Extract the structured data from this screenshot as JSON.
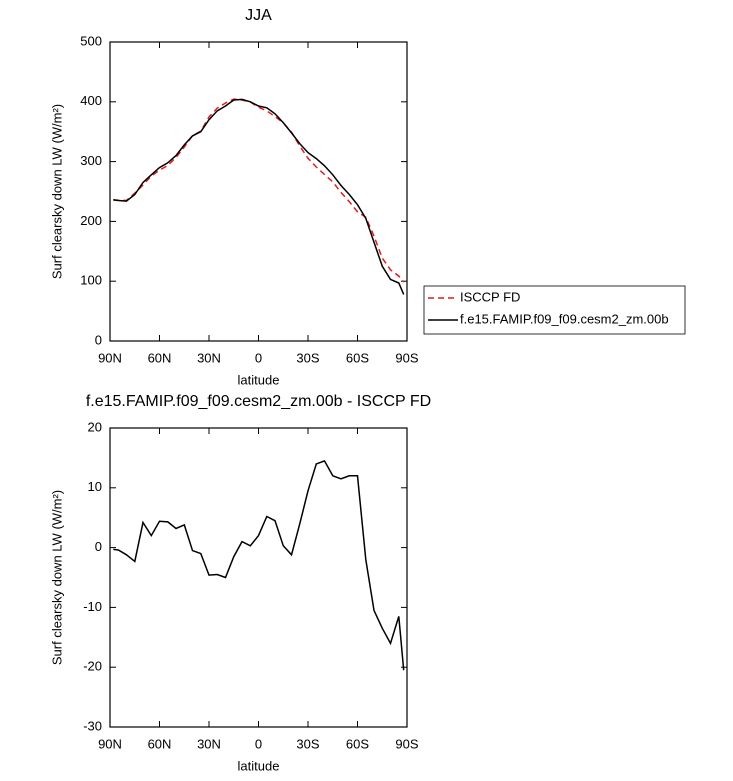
{
  "chart_data": [
    {
      "type": "line",
      "title": "JJA",
      "xlabel": "latitude",
      "ylabel": "Surf clearsky down LW (W/m²)",
      "x": [
        88,
        85,
        80,
        75,
        70,
        65,
        60,
        55,
        50,
        45,
        40,
        35,
        30,
        25,
        20,
        15,
        10,
        5,
        0,
        -5,
        -10,
        -15,
        -20,
        -25,
        -30,
        -35,
        -40,
        -45,
        -50,
        -55,
        -60,
        -65,
        -70,
        -75,
        -80,
        -85,
        -88
      ],
      "series": [
        {
          "name": "ISCCP FD",
          "color": "#e41a1c",
          "dash": "dashed",
          "values": [
            236.3,
            235.4,
            235.2,
            247.3,
            260.8,
            276,
            285.6,
            293.7,
            306.8,
            324.2,
            343.5,
            351,
            374.6,
            389.5,
            398,
            404.5,
            403,
            399.7,
            391,
            384.8,
            375.5,
            364.7,
            349.2,
            326,
            305.5,
            291,
            278.5,
            266,
            248.5,
            233,
            216,
            207,
            175.5,
            138.5,
            119,
            108.5,
            98.5
          ]
        },
        {
          "name": "f.e15.FAMIP.f09_f09.cesm2_zm.00b",
          "color": "#000000",
          "dash": "solid",
          "values": [
            236,
            235,
            234,
            245,
            265,
            278,
            290,
            298,
            310,
            328,
            343,
            350,
            370,
            385,
            393,
            403,
            404,
            400,
            393,
            390,
            380,
            365,
            348,
            330,
            315,
            305,
            293,
            278,
            260,
            245,
            228,
            205,
            165,
            125,
            103,
            97,
            78
          ]
        }
      ],
      "xlim": [
        90,
        -90
      ],
      "xticks": [
        {
          "value": 90,
          "label": "90N"
        },
        {
          "value": 60,
          "label": "60N"
        },
        {
          "value": 30,
          "label": "30N"
        },
        0,
        {
          "value": -30,
          "label": "30S"
        },
        {
          "value": -60,
          "label": "60S"
        },
        {
          "value": -90,
          "label": "90S"
        }
      ],
      "ylim": [
        0,
        500
      ],
      "yticks": [
        0,
        100,
        200,
        300,
        400,
        500
      ],
      "legend": "outside-right"
    },
    {
      "type": "line",
      "title": "f.e15.FAMIP.f09_f09.cesm2_zm.00b - ISCCP FD",
      "xlabel": "latitude",
      "ylabel": "Surf clearsky down LW (W/m²)",
      "x": [
        88,
        85,
        80,
        75,
        70,
        65,
        60,
        55,
        50,
        45,
        40,
        35,
        30,
        25,
        20,
        15,
        10,
        5,
        0,
        -5,
        -10,
        -15,
        -20,
        -25,
        -30,
        -35,
        -40,
        -45,
        -50,
        -55,
        -60,
        -65,
        -70,
        -75,
        -80,
        -85,
        -88
      ],
      "series": [
        {
          "color": "#000000",
          "dash": "solid",
          "values": [
            -0.3,
            -0.4,
            -1.2,
            -2.3,
            4.2,
            2,
            4.4,
            4.3,
            3.2,
            3.8,
            -0.5,
            -1,
            -4.6,
            -4.5,
            -5,
            -1.5,
            1,
            0.3,
            2,
            5.2,
            4.5,
            0.3,
            -1.2,
            4,
            9.5,
            14,
            14.5,
            12,
            11.5,
            12,
            12,
            -2,
            -10.5,
            -13.5,
            -16,
            -11.5,
            -20.5
          ]
        }
      ],
      "xlim": [
        90,
        -90
      ],
      "xticks": [
        {
          "value": 90,
          "label": "90N"
        },
        {
          "value": 60,
          "label": "60N"
        },
        {
          "value": 30,
          "label": "30N"
        },
        0,
        {
          "value": -30,
          "label": "30S"
        },
        {
          "value": -60,
          "label": "60S"
        },
        {
          "value": -90,
          "label": "90S"
        }
      ],
      "ylim": [
        -30,
        20
      ],
      "yticks": [
        -30,
        -20,
        -10,
        0,
        10,
        20
      ]
    }
  ]
}
